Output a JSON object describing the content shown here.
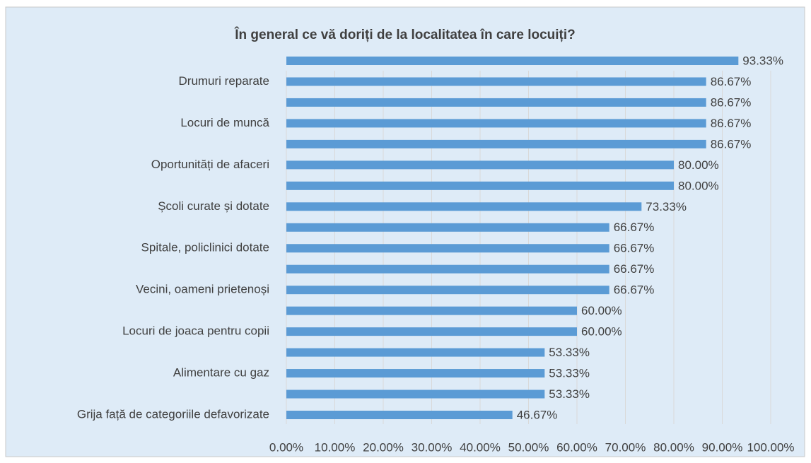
{
  "chart_data": {
    "type": "hbar",
    "title": "În general ce vă doriți de la localitatea în care locuiți?",
    "categories": [
      null,
      "Drumuri reparate",
      null,
      "Locuri de muncă",
      null,
      "Oportunități de afaceri",
      null,
      "Școli curate și dotate",
      null,
      "Spitale, policlinici dotate",
      null,
      "Vecini, oameni prietenoși",
      null,
      "Locuri de joaca pentru copii",
      null,
      "Alimentare cu gaz",
      null,
      "Grija față de categoriile defavorizate"
    ],
    "values": [
      93.33,
      86.67,
      86.67,
      86.67,
      86.67,
      80.0,
      80.0,
      73.33,
      66.67,
      66.67,
      66.67,
      66.67,
      60.0,
      60.0,
      53.33,
      53.33,
      53.33,
      46.67
    ],
    "value_labels": [
      "93.33%",
      "86.67%",
      "86.67%",
      "86.67%",
      "86.67%",
      "80.00%",
      "80.00%",
      "73.33%",
      "66.67%",
      "66.67%",
      "66.67%",
      "66.67%",
      "60.00%",
      "60.00%",
      "53.33%",
      "53.33%",
      "53.33%",
      "46.67%"
    ],
    "color": "#5b9bd5",
    "xlim": [
      0,
      100
    ],
    "xticks": [
      {
        "value": 0,
        "label": "0.00%"
      },
      {
        "value": 10,
        "label": "10.00%"
      },
      {
        "value": 20,
        "label": "20.00%"
      },
      {
        "value": 30,
        "label": "30.00%"
      },
      {
        "value": 40,
        "label": "40.00%"
      },
      {
        "value": 50,
        "label": "50.00%"
      },
      {
        "value": 60,
        "label": "60.00%"
      },
      {
        "value": 70,
        "label": "70.00%"
      },
      {
        "value": 80,
        "label": "80.00%"
      },
      {
        "value": 90,
        "label": "90.00%"
      },
      {
        "value": 100,
        "label": "100.00%"
      }
    ],
    "grid": true
  }
}
